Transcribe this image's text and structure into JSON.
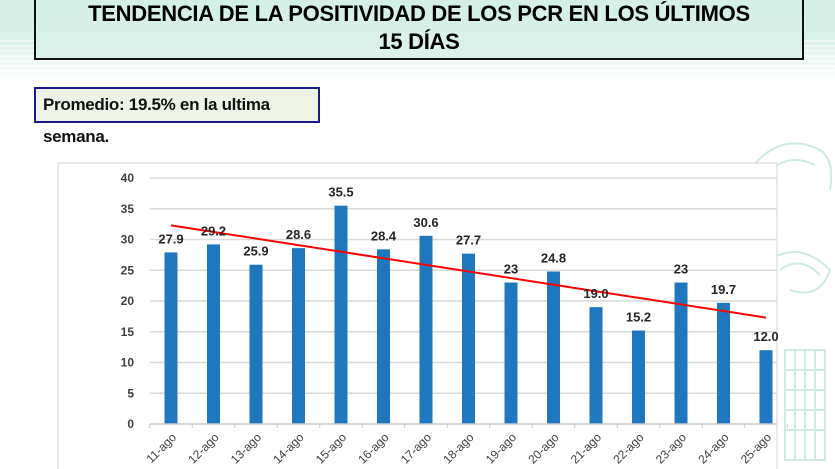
{
  "header": {
    "title_line1": "TENDENCIA DE LA POSITIVIDAD DE LOS PCR EN LOS ÚLTIMOS",
    "title_line2": "15 DÍAS"
  },
  "summary": {
    "text": "Promedio: 19.5% en la ultima semana."
  },
  "colors": {
    "bar": "#1f77c0",
    "trend": "#ff0000",
    "grid": "#d9d9d9",
    "title_border": "#111111",
    "summary_border": "#1a1a8c"
  },
  "chart_data": {
    "type": "bar",
    "title": "TENDENCIA DE LA POSITIVIDAD DE LOS PCR EN LOS ÚLTIMOS 15 DÍAS",
    "xlabel": "",
    "ylabel": "",
    "categories": [
      "11-ago",
      "12-ago",
      "13-ago",
      "14-ago",
      "15-ago",
      "16-ago",
      "17-ago",
      "18-ago",
      "19-ago",
      "20-ago",
      "21-ago",
      "22-ago",
      "23-ago",
      "24-ago",
      "25-ago"
    ],
    "values": [
      27.9,
      29.2,
      25.9,
      28.6,
      35.5,
      28.4,
      30.6,
      27.7,
      23,
      24.8,
      19.0,
      15.2,
      23,
      19.7,
      12.0
    ],
    "data_labels": [
      "27.9",
      "29.2",
      "25.9",
      "28.6",
      "35.5",
      "28.4",
      "30.6",
      "27.7",
      "23",
      "24.8",
      "19.0",
      "15.2",
      "23",
      "19.7",
      "12.0"
    ],
    "ylim": [
      0,
      40
    ],
    "yticks": [
      0,
      5,
      10,
      15,
      20,
      25,
      30,
      35,
      40
    ],
    "grid": true,
    "legend": "none",
    "trendline": {
      "type": "linear",
      "start": {
        "category": "11-ago",
        "value": 32.3
      },
      "end": {
        "category": "25-ago",
        "value": 17.3
      }
    }
  }
}
